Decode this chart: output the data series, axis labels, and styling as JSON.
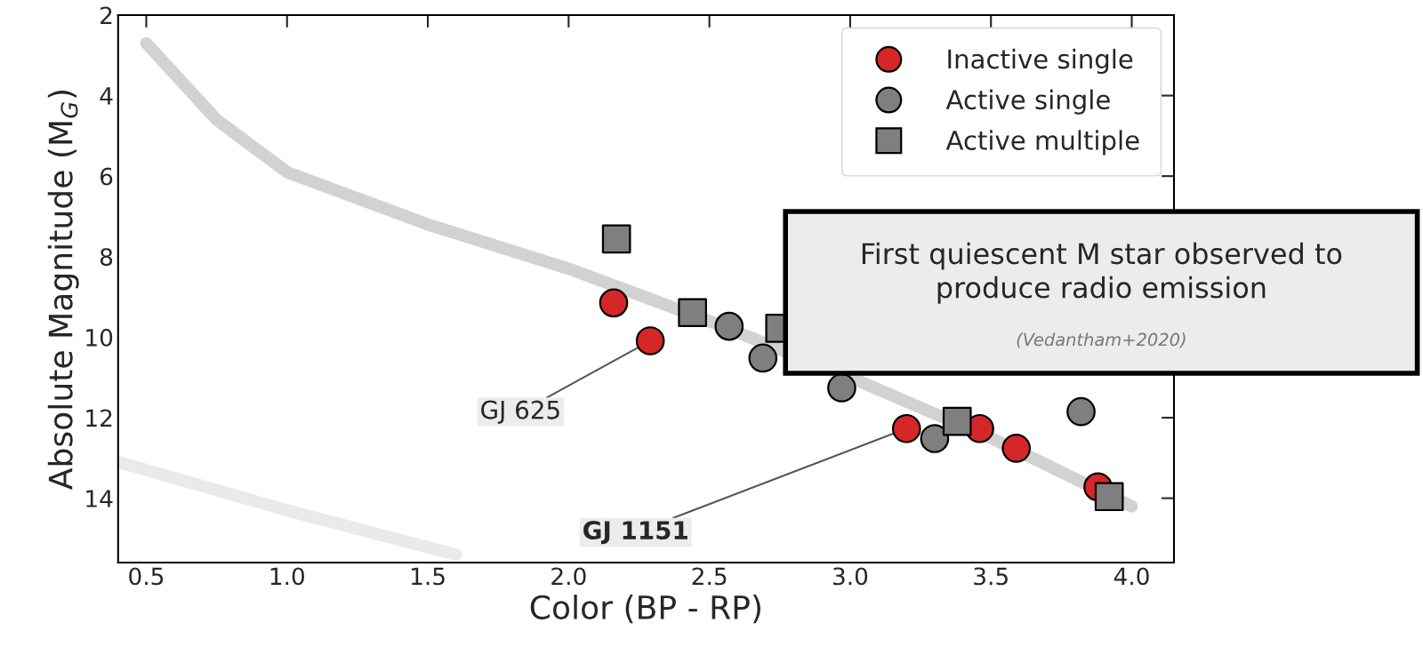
{
  "chart_data": {
    "type": "scatter",
    "xlabel": "Color (BP - RP)",
    "ylabel": "Absolute Magnitude (M$_{G}$)",
    "xlim": [
      0.4,
      4.15
    ],
    "xticks": [
      0.5,
      {
        "value": 1,
        "label": "1.0"
      },
      1.5,
      {
        "value": 2,
        "label": "2.0"
      },
      2.5,
      {
        "value": 3,
        "label": "3.0"
      },
      3.5,
      {
        "value": 4,
        "label": "4.0"
      }
    ],
    "ylim": [
      15.6,
      2
    ],
    "yticks": [
      2,
      4,
      6,
      8,
      10,
      12,
      14
    ],
    "grid": false,
    "legend": "top right",
    "series": [
      {
        "type": "line",
        "color": "#b4b4b4",
        "x": [
          0.5,
          0.75,
          1.0,
          1.5,
          2.0,
          2.5,
          3.0,
          3.5,
          4.0
        ],
        "values": [
          2.7,
          4.6,
          5.9,
          7.2,
          8.3,
          9.6,
          11.0,
          12.5,
          14.2
        ]
      },
      {
        "type": "line",
        "color": "#dcdcdc",
        "x": [
          0.4,
          1.0,
          1.6
        ],
        "values": [
          13.1,
          14.3,
          15.4
        ]
      },
      {
        "name": "Inactive single",
        "color": "#d62728",
        "marker": "circle",
        "x": [
          2.16,
          2.29,
          3.2,
          3.46,
          3.59,
          3.88
        ],
        "values": [
          9.15,
          10.09,
          12.27,
          12.27,
          12.76,
          13.72
        ]
      },
      {
        "name": "Active single",
        "color": "#7f7f7f",
        "marker": "circle",
        "x": [
          2.57,
          2.69,
          2.97,
          3.3,
          3.82
        ],
        "values": [
          9.73,
          10.52,
          11.26,
          12.52,
          11.85
        ]
      },
      {
        "name": "Active multiple",
        "color": "#7f7f7f",
        "marker": "square",
        "x": [
          2.17,
          2.44,
          2.75,
          3.38,
          3.92
        ],
        "values": [
          7.56,
          9.39,
          9.78,
          12.09,
          13.96
        ]
      }
    ],
    "annotations": [
      {
        "text": "GJ 625",
        "x": 2.29,
        "y": 10.09
      },
      {
        "text": "GJ 1151",
        "x": 3.2,
        "y": 12.27
      },
      "First quiescent M star observed to\nproduce radio emission",
      "(Vedantham+2020)"
    ]
  }
}
